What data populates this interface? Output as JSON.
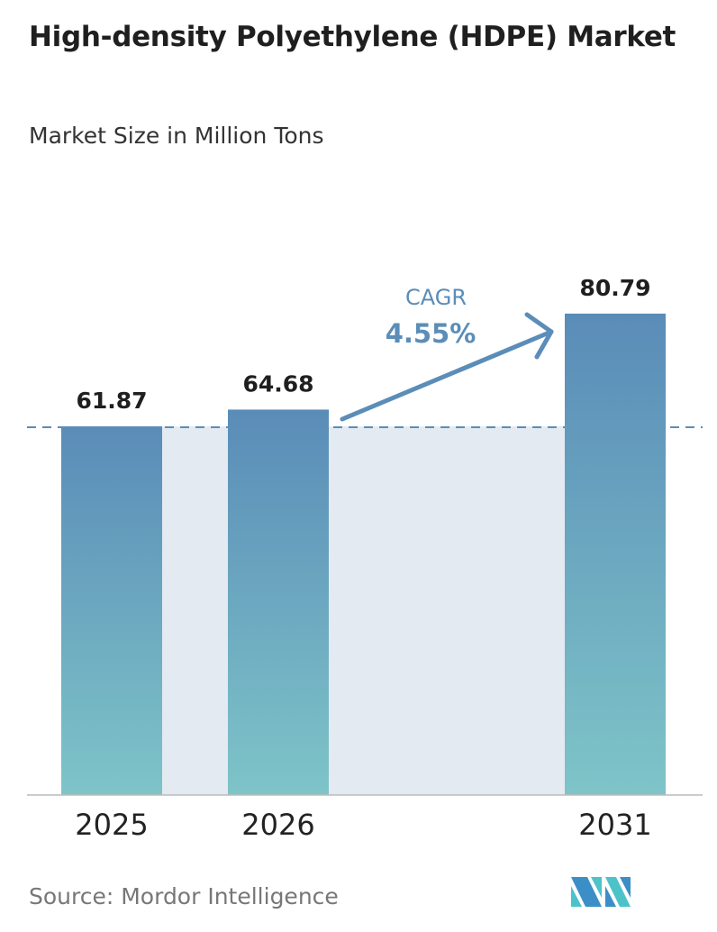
{
  "title": "High-density Polyethylene (HDPE) Market",
  "subtitle": "Market Size in Million Tons",
  "source": "Source:  Mordor Intelligence",
  "logo": "Mordor Intelligence logo",
  "colors": {
    "bar_top": "#5a8cb8",
    "bar_bottom": "#7ec4c8",
    "band": "#e3eaf2",
    "cagr": "#5b8db8"
  },
  "chart_data": {
    "type": "bar",
    "categories": [
      "2025",
      "2026",
      "2031"
    ],
    "values": [
      61.87,
      64.68,
      80.79
    ],
    "value_labels": [
      "61.87",
      "64.68",
      "80.79"
    ],
    "title": "High-density Polyethylene (HDPE) Market",
    "subtitle": "Market Size in Million Tons",
    "grid": false,
    "annotation": {
      "label": "CAGR",
      "value": "4.55%"
    }
  }
}
